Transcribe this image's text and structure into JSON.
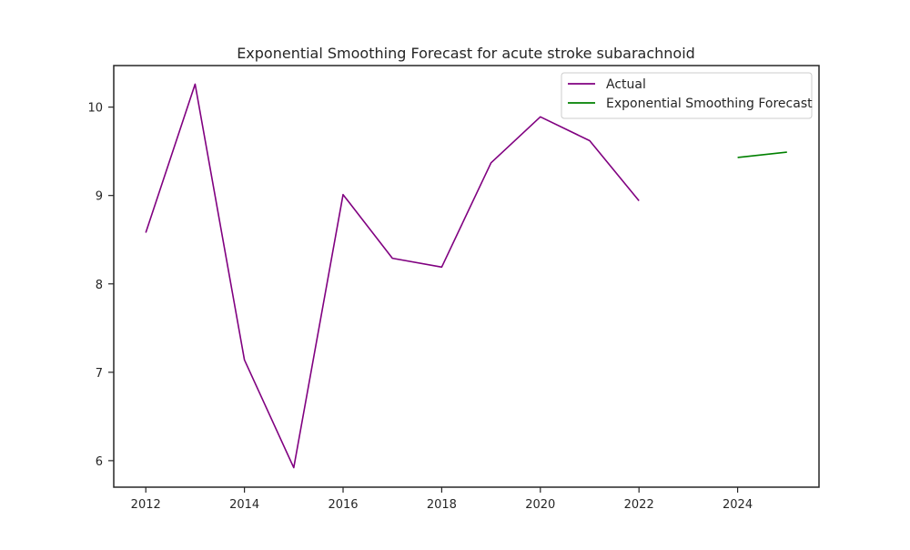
{
  "chart_data": {
    "type": "line",
    "title": "Exponential Smoothing Forecast for acute stroke subarachnoid",
    "xlabel": "",
    "ylabel": "",
    "xlim": [
      2011.35,
      2025.65
    ],
    "ylim": [
      5.7,
      10.47
    ],
    "x_ticks": [
      2012,
      2014,
      2016,
      2018,
      2020,
      2022,
      2024
    ],
    "y_ticks": [
      6,
      7,
      8,
      9,
      10
    ],
    "grid": false,
    "legend_position": "top-right",
    "series": [
      {
        "name": "Actual",
        "color": "#800080",
        "x": [
          2012,
          2013,
          2014,
          2015,
          2016,
          2017,
          2018,
          2019,
          2020,
          2021,
          2022
        ],
        "y": [
          8.58,
          10.26,
          7.14,
          5.92,
          9.01,
          8.29,
          8.19,
          9.37,
          9.89,
          9.62,
          8.94
        ]
      },
      {
        "name": "Exponential Smoothing Forecast",
        "color": "#008000",
        "x": [
          2024,
          2025
        ],
        "y": [
          9.43,
          9.49
        ]
      }
    ]
  }
}
